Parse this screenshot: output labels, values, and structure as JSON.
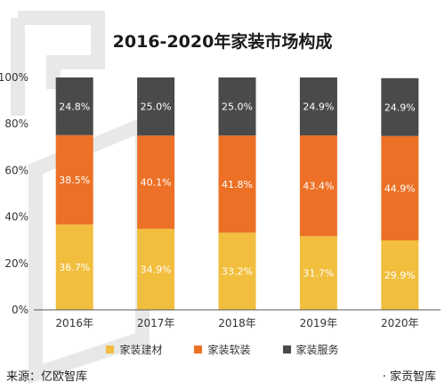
{
  "title": "2016-2020年家装市场构成",
  "source": "来源：亿欧智库",
  "brand": "· 家贡智库",
  "colors": {
    "materials": "#F2BE3E",
    "decoration": "#EC7126",
    "service": "#4A4A4A",
    "axis": "#595959",
    "grid": "#D9D9D9"
  },
  "chart_data": {
    "type": "bar",
    "stacked": true,
    "categories": [
      "2016年",
      "2017年",
      "2018年",
      "2019年",
      "2020年"
    ],
    "series": [
      {
        "name": "家装建材",
        "values": [
          36.7,
          34.9,
          33.2,
          31.7,
          29.9
        ],
        "labels": [
          "36.7%",
          "34.9%",
          "33.2%",
          "31.7%",
          "29.9%"
        ]
      },
      {
        "name": "家装软装",
        "values": [
          38.5,
          40.1,
          41.8,
          43.4,
          44.9
        ],
        "labels": [
          "38.5%",
          "40.1%",
          "41.8%",
          "43.4%",
          "44.9%"
        ]
      },
      {
        "name": "家装服务",
        "values": [
          24.8,
          25.0,
          25.0,
          24.9,
          24.9
        ],
        "labels": [
          "24.8%",
          "25.0%",
          "25.0%",
          "24.9%",
          "24.9%"
        ]
      }
    ],
    "y_ticks": [
      "0%",
      "20%",
      "40%",
      "60%",
      "80%",
      "100%"
    ],
    "ylim": [
      0,
      100
    ],
    "legend_position": "bottom",
    "grid": false
  }
}
